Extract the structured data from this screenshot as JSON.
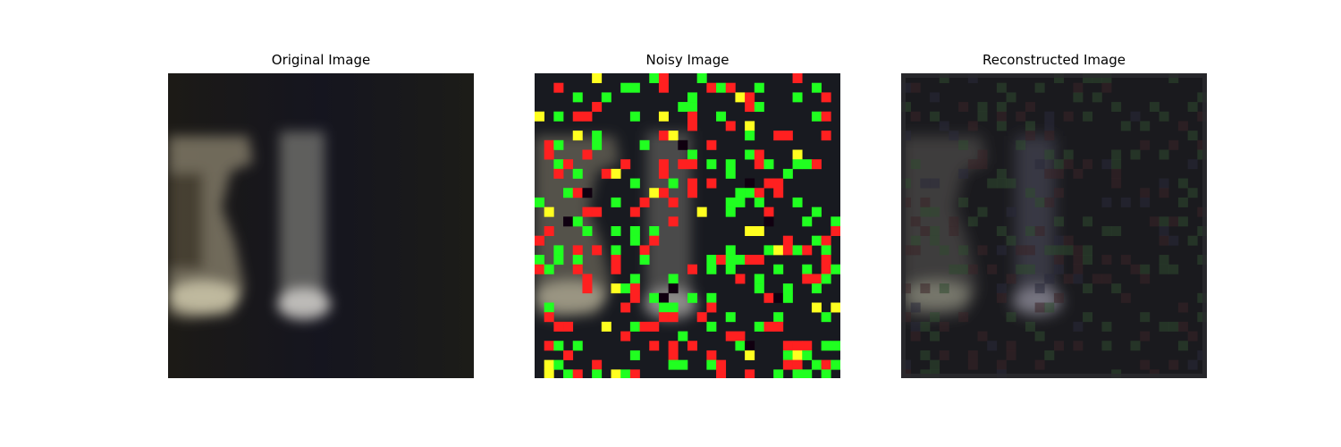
{
  "figure": {
    "panels": [
      {
        "title": "Original Image",
        "image": "blurred-dark-photo-original"
      },
      {
        "title": "Noisy Image",
        "image": "salt-and-pepper-colored-noise-image"
      },
      {
        "title": "Reconstructed Image",
        "image": "denoised-reconstruction"
      }
    ],
    "colors": {
      "noise_red": "#ff2020",
      "noise_green": "#20ff20",
      "noise_yellow": "#ffff20",
      "background_dark": "#141820"
    }
  }
}
